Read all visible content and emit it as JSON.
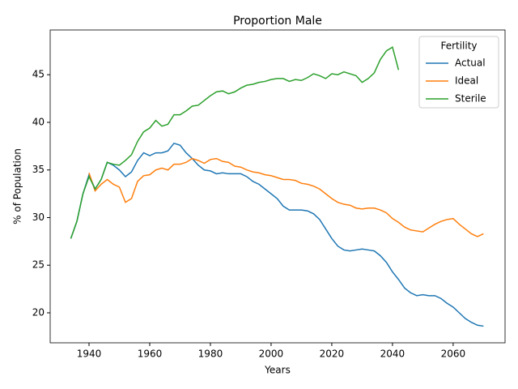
{
  "chart_data": {
    "type": "line",
    "title": "Proportion Male",
    "xlabel": "Years",
    "ylabel": "% of Population",
    "legend_title": "Fertility",
    "legend": "upper right",
    "x": [
      1934,
      1936,
      1938,
      1940,
      1942,
      1944,
      1946,
      1948,
      1950,
      1952,
      1954,
      1956,
      1958,
      1960,
      1962,
      1964,
      1966,
      1968,
      1970,
      1972,
      1974,
      1976,
      1978,
      1980,
      1982,
      1984,
      1986,
      1988,
      1990,
      1992,
      1994,
      1996,
      1998,
      2000,
      2002,
      2004,
      2006,
      2008,
      2010,
      2012,
      2014,
      2016,
      2018,
      2020,
      2022,
      2024,
      2026,
      2028,
      2030,
      2032,
      2034,
      2036,
      2038,
      2040,
      2042,
      2044,
      2046,
      2048,
      2050,
      2052,
      2054,
      2056,
      2058,
      2060,
      2062,
      2064,
      2066,
      2068,
      2070
    ],
    "series": [
      {
        "name": "Actual",
        "color": "#1f77b4",
        "values": [
          27.8,
          29.6,
          32.5,
          34.5,
          33.0,
          34.0,
          35.8,
          35.5,
          35.0,
          34.3,
          34.8,
          36.0,
          36.8,
          36.5,
          36.8,
          36.8,
          37.0,
          37.8,
          37.6,
          36.8,
          36.2,
          35.5,
          35.0,
          34.9,
          34.6,
          34.7,
          34.6,
          34.6,
          34.6,
          34.3,
          33.8,
          33.5,
          33.0,
          32.5,
          32.0,
          31.2,
          30.8,
          30.8,
          30.8,
          30.7,
          30.4,
          29.8,
          28.8,
          27.8,
          27.0,
          26.6,
          26.5,
          26.6,
          26.7,
          26.6,
          26.5,
          26.0,
          25.3,
          24.3,
          23.5,
          22.6,
          22.1,
          21.8,
          21.9,
          21.8,
          21.8,
          21.5,
          21.0,
          20.6,
          20.0,
          19.4,
          19.0,
          18.7,
          18.6
        ]
      },
      {
        "name": "Ideal",
        "color": "#ff7f0e",
        "values": [
          null,
          null,
          null,
          34.7,
          32.8,
          33.5,
          34.0,
          33.5,
          33.2,
          31.6,
          32.0,
          33.8,
          34.4,
          34.5,
          35.0,
          35.2,
          35.0,
          35.6,
          35.6,
          35.8,
          36.2,
          36.0,
          35.7,
          36.1,
          36.2,
          35.9,
          35.8,
          35.4,
          35.3,
          35.0,
          34.8,
          34.7,
          34.5,
          34.4,
          34.2,
          34.0,
          34.0,
          33.9,
          33.6,
          33.5,
          33.3,
          33.0,
          32.5,
          32.0,
          31.6,
          31.4,
          31.3,
          31.0,
          30.9,
          31.0,
          31.0,
          30.8,
          30.5,
          29.9,
          29.5,
          29.0,
          28.7,
          28.6,
          28.5,
          28.9,
          29.3,
          29.6,
          29.8,
          29.9,
          29.3,
          28.8,
          28.3,
          28.0,
          28.3
        ]
      },
      {
        "name": "Sterile",
        "color": "#2ca02c",
        "values": [
          27.8,
          29.6,
          32.5,
          34.3,
          33.0,
          34.0,
          35.8,
          35.6,
          35.5,
          36.0,
          36.6,
          38.0,
          39.0,
          39.4,
          40.2,
          39.6,
          39.8,
          40.8,
          40.8,
          41.2,
          41.7,
          41.8,
          42.3,
          42.8,
          43.2,
          43.3,
          43.0,
          43.2,
          43.6,
          43.9,
          44.0,
          44.2,
          44.3,
          44.5,
          44.6,
          44.6,
          44.3,
          44.5,
          44.4,
          44.7,
          45.1,
          44.9,
          44.6,
          45.1,
          45.0,
          45.3,
          45.1,
          44.9,
          44.2,
          44.6,
          45.2,
          46.6,
          47.5,
          47.9,
          45.5,
          null,
          null,
          null,
          null,
          null,
          null,
          null,
          null,
          null,
          null,
          null,
          null,
          null,
          null
        ]
      }
    ],
    "xlim": [
      1927.2,
      2077.1
    ],
    "ylim": [
      16.85,
      49.7
    ],
    "xticks": [
      1940,
      1960,
      1980,
      2000,
      2020,
      2040,
      2060
    ],
    "yticks": [
      20,
      25,
      30,
      35,
      40,
      45
    ]
  }
}
